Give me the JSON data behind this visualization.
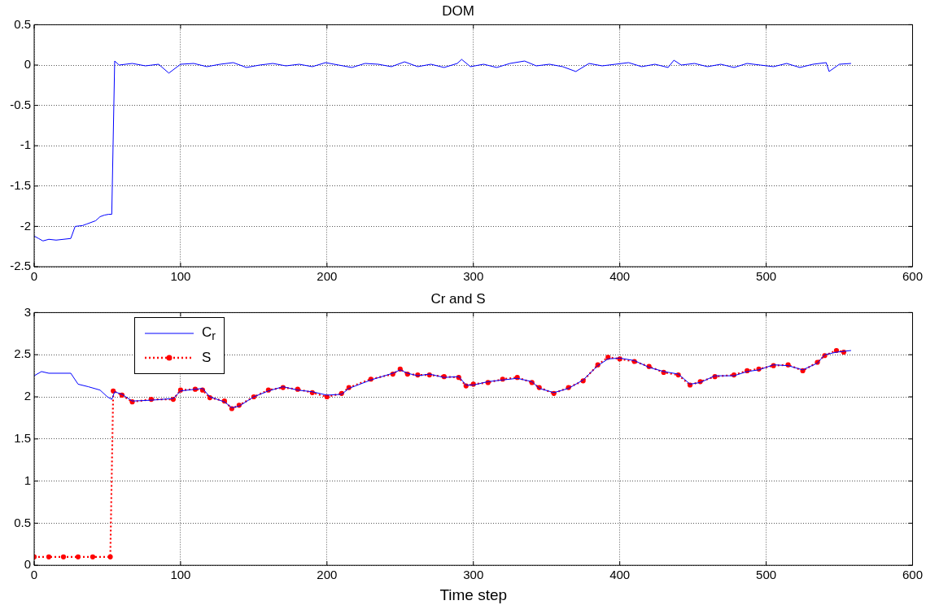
{
  "chart_data": [
    {
      "type": "line",
      "title": "DOM",
      "xlim": [
        0,
        600
      ],
      "xticks": [
        0,
        100,
        200,
        300,
        400,
        500,
        600
      ],
      "ylim": [
        -2.5,
        0.5
      ],
      "yticks": [
        -2.5,
        -2,
        -1.5,
        -1,
        -0.5,
        0,
        0.5
      ],
      "grid": true,
      "legend": false,
      "series": [
        {
          "color": "#0000ff",
          "x": [
            0,
            3,
            6,
            10,
            15,
            20,
            25,
            28,
            33,
            36,
            42,
            45,
            48,
            51,
            53,
            55,
            58,
            67,
            76,
            85,
            92,
            100,
            109,
            118,
            127,
            136,
            145,
            154,
            163,
            172,
            181,
            190,
            199,
            208,
            217,
            226,
            235,
            244,
            253,
            262,
            271,
            280,
            289,
            292,
            298,
            307,
            316,
            325,
            335,
            343,
            352,
            361,
            370,
            379,
            388,
            397,
            406,
            415,
            424,
            433,
            437,
            442,
            451,
            460,
            469,
            478,
            487,
            496,
            505,
            514,
            523,
            532,
            541,
            543,
            550,
            558
          ],
          "values": [
            -2.12,
            -2.15,
            -2.18,
            -2.16,
            -2.17,
            -2.16,
            -2.15,
            -2.0,
            -1.99,
            -1.97,
            -1.93,
            -1.88,
            -1.86,
            -1.85,
            -1.85,
            0.05,
            0.0,
            0.02,
            -0.01,
            0.01,
            -0.1,
            0.01,
            0.02,
            -0.02,
            0.01,
            0.03,
            -0.03,
            0.0,
            0.02,
            -0.01,
            0.01,
            -0.02,
            0.03,
            0.0,
            -0.03,
            0.02,
            0.01,
            -0.02,
            0.04,
            -0.02,
            0.01,
            -0.03,
            0.02,
            0.07,
            -0.02,
            0.01,
            -0.03,
            0.02,
            0.05,
            -0.01,
            0.01,
            -0.02,
            -0.08,
            0.02,
            -0.01,
            0.01,
            0.03,
            -0.02,
            0.01,
            -0.03,
            0.06,
            0.0,
            0.02,
            -0.02,
            0.01,
            -0.03,
            0.02,
            0.0,
            -0.02,
            0.02,
            -0.03,
            0.01,
            0.03,
            -0.08,
            0.01,
            0.02
          ]
        }
      ]
    },
    {
      "type": "line",
      "title": "Cr and S",
      "xlabel": "Time step",
      "xlim": [
        0,
        600
      ],
      "xticks": [
        0,
        100,
        200,
        300,
        400,
        500,
        600
      ],
      "ylim": [
        0,
        3
      ],
      "yticks": [
        0,
        0.5,
        1,
        1.5,
        2,
        2.5,
        3
      ],
      "grid": true,
      "legend": "top left",
      "series": [
        {
          "name": "C$_{r}$",
          "color": "#0000ff",
          "marker": "none",
          "line_style": "solid",
          "x": [
            0,
            5,
            10,
            25,
            30,
            37,
            45,
            50,
            53,
            55,
            60,
            67,
            80,
            95,
            100,
            110,
            115,
            120,
            130,
            135,
            140,
            150,
            160,
            170,
            180,
            190,
            200,
            210,
            215,
            230,
            245,
            250,
            255,
            262,
            270,
            280,
            290,
            295,
            300,
            310,
            320,
            330,
            340,
            345,
            355,
            365,
            375,
            385,
            392,
            400,
            410,
            420,
            430,
            440,
            448,
            455,
            465,
            478,
            487,
            495,
            505,
            515,
            525,
            535,
            540,
            548,
            558
          ],
          "values": [
            2.25,
            2.3,
            2.28,
            2.28,
            2.15,
            2.12,
            2.08,
            2.0,
            1.97,
            2.06,
            2.03,
            1.95,
            1.96,
            1.98,
            2.07,
            2.09,
            2.1,
            2.0,
            1.94,
            1.87,
            1.89,
            2.0,
            2.07,
            2.12,
            2.08,
            2.06,
            2.02,
            2.03,
            2.1,
            2.2,
            2.28,
            2.32,
            2.28,
            2.25,
            2.27,
            2.23,
            2.24,
            2.14,
            2.14,
            2.18,
            2.2,
            2.22,
            2.18,
            2.1,
            2.05,
            2.1,
            2.2,
            2.37,
            2.45,
            2.46,
            2.43,
            2.35,
            2.3,
            2.27,
            2.15,
            2.17,
            2.25,
            2.25,
            2.3,
            2.32,
            2.38,
            2.37,
            2.32,
            2.4,
            2.5,
            2.53,
            2.55
          ]
        },
        {
          "name": "S",
          "color": "#ff0000",
          "marker": "circle",
          "line_style": "dotted",
          "x": [
            0,
            10,
            20,
            30,
            40,
            52,
            54,
            60,
            67,
            80,
            95,
            100,
            110,
            115,
            120,
            130,
            135,
            140,
            150,
            160,
            170,
            180,
            190,
            200,
            210,
            215,
            230,
            245,
            250,
            255,
            262,
            270,
            280,
            290,
            295,
            300,
            310,
            320,
            330,
            340,
            345,
            355,
            365,
            375,
            385,
            392,
            400,
            410,
            420,
            430,
            440,
            448,
            455,
            465,
            478,
            487,
            495,
            505,
            515,
            525,
            535,
            540,
            548,
            553
          ],
          "values": [
            0.1,
            0.1,
            0.1,
            0.1,
            0.1,
            0.1,
            2.07,
            2.02,
            1.94,
            1.97,
            1.97,
            2.08,
            2.09,
            2.08,
            1.99,
            1.95,
            1.86,
            1.9,
            2.0,
            2.08,
            2.11,
            2.09,
            2.05,
            2.0,
            2.04,
            2.11,
            2.21,
            2.27,
            2.33,
            2.27,
            2.26,
            2.26,
            2.24,
            2.23,
            2.13,
            2.15,
            2.17,
            2.21,
            2.23,
            2.17,
            2.11,
            2.04,
            2.11,
            2.19,
            2.38,
            2.47,
            2.45,
            2.42,
            2.36,
            2.29,
            2.26,
            2.14,
            2.18,
            2.24,
            2.26,
            2.31,
            2.33,
            2.37,
            2.38,
            2.31,
            2.41,
            2.49,
            2.55,
            2.53
          ]
        }
      ]
    }
  ]
}
